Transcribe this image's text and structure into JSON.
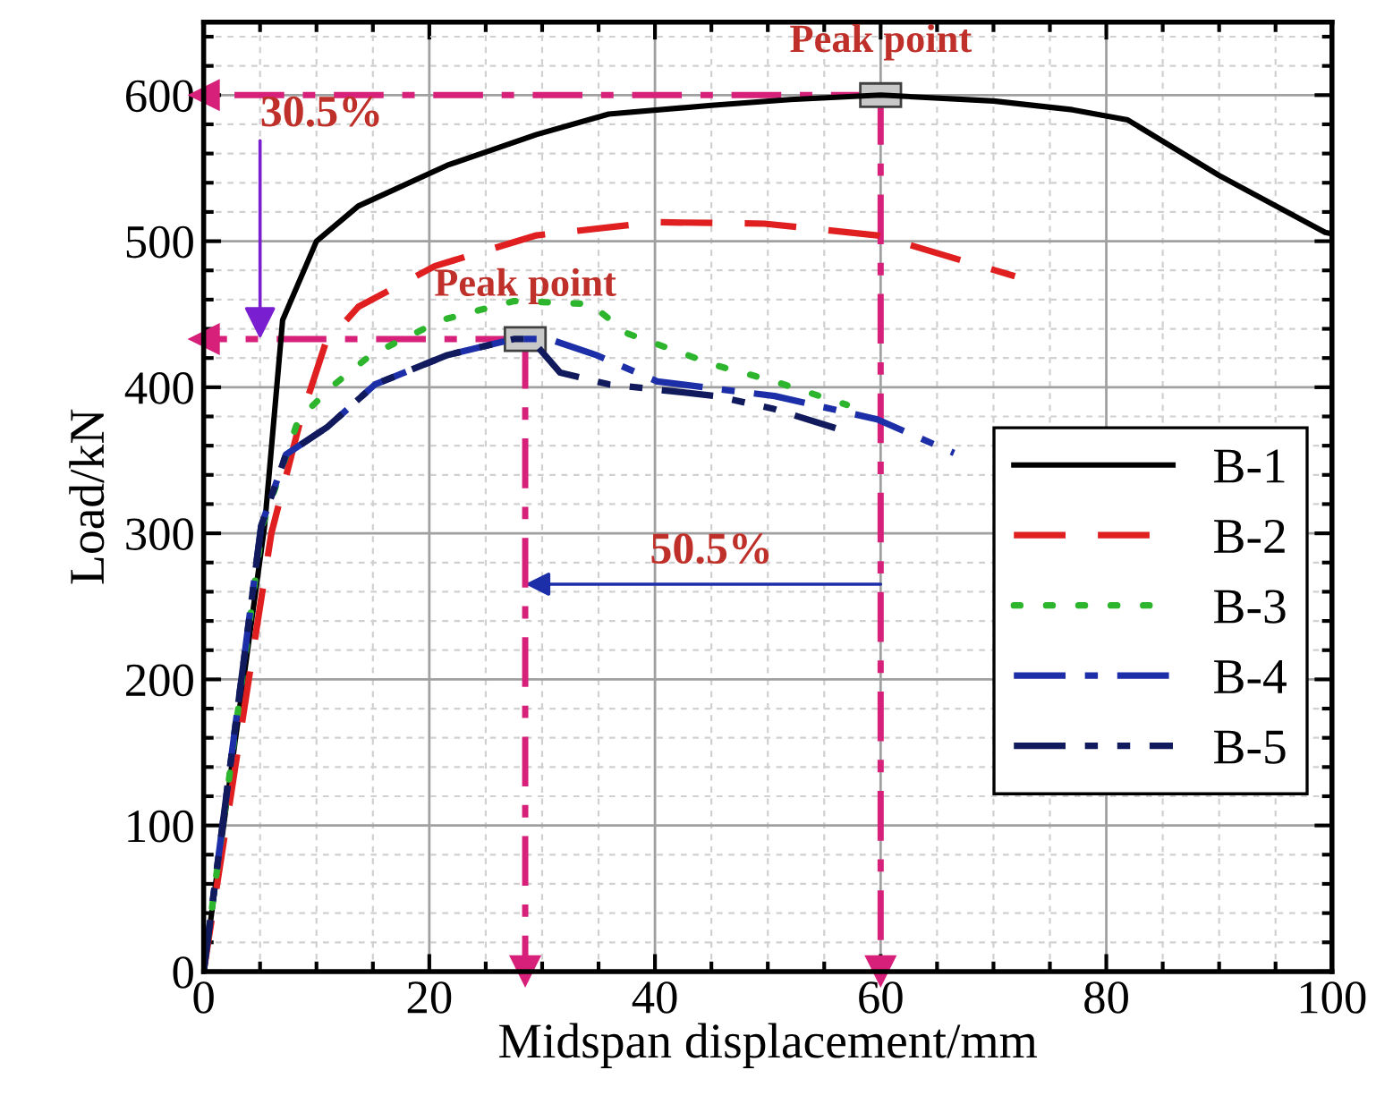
{
  "chart_data": {
    "type": "line",
    "xlabel": "Midspan displacement/mm",
    "ylabel": "Load/kN",
    "xlim": [
      0,
      100
    ],
    "ylim": [
      0,
      650
    ],
    "xticks": [
      0,
      20,
      40,
      60,
      80,
      100
    ],
    "yticks": [
      0,
      100,
      200,
      300,
      400,
      500,
      600
    ],
    "grid": true,
    "legend": "right",
    "series": [
      {
        "name": "B-1",
        "color": "#000000",
        "line_style": "solid",
        "x": [
          0,
          5.4,
          7.0,
          10,
          13.7,
          21.6,
          29.5,
          35.9,
          45,
          52,
          60,
          70,
          77,
          81.9,
          90,
          99.4,
          100
        ],
        "values": [
          0,
          305,
          446,
          500,
          524,
          552,
          573,
          587,
          593,
          597,
          600,
          596,
          590,
          583,
          545,
          506,
          505
        ]
      },
      {
        "name": "B-2",
        "color": "#e02020",
        "line_style": "dashed",
        "x": [
          0,
          6,
          8.6,
          10.8,
          13.7,
          20.5,
          29.5,
          40,
          49.7,
          59.7,
          71.9
        ],
        "values": [
          0,
          300,
          378,
          430,
          455,
          483,
          504,
          513,
          512,
          504,
          476
        ]
      },
      {
        "name": "B-3",
        "color": "#2db52d",
        "line_style": "dotted",
        "x": [
          0,
          5.2,
          8.4,
          11.6,
          14.8,
          21.1,
          27.5,
          34.3,
          37.5,
          45.4,
          50.6,
          57
        ],
        "values": [
          0,
          305,
          378,
          402,
          422,
          446,
          459,
          457,
          437,
          415,
          404,
          388
        ]
      },
      {
        "name": "B-4",
        "color": "#1c2fa8",
        "line_style": "dashdot",
        "x": [
          0,
          5.1,
          7.3,
          11,
          15.2,
          21.6,
          27.5,
          30.6,
          34.8,
          40.2,
          50.6,
          59.7,
          66.5
        ],
        "values": [
          0,
          305,
          354,
          373,
          402,
          422,
          433,
          433,
          422,
          404,
          394,
          378,
          355
        ]
      },
      {
        "name": "B-5",
        "color": "#101a5c",
        "line_style": "dashdotdot",
        "x": [
          0,
          5.1,
          7.3,
          11,
          15.2,
          21.6,
          27.5,
          29,
          31.6,
          35.9,
          45.4,
          50.6,
          56
        ],
        "values": [
          0,
          305,
          354,
          373,
          402,
          422,
          433,
          433,
          410,
          402,
          394,
          385,
          372
        ]
      }
    ],
    "ref_lines": [
      {
        "axis": "x",
        "value": 60,
        "color": "#d6207a",
        "line_style": "dashdot"
      },
      {
        "axis": "y",
        "value": 600,
        "color": "#d6207a",
        "line_style": "dashdot"
      },
      {
        "axis": "x",
        "value": 28.5,
        "color": "#d6207a",
        "line_style": "dashdot"
      },
      {
        "axis": "y",
        "value": 433,
        "color": "#d6207a",
        "line_style": "dashdot"
      }
    ],
    "annotations": [
      {
        "text": "Peak point",
        "x": 60,
        "y": 600
      },
      {
        "text": "Peak point",
        "x": 28.5,
        "y": 433
      },
      {
        "text": "30.5%",
        "x": 5,
        "y": 433
      },
      "50.5%"
    ]
  }
}
